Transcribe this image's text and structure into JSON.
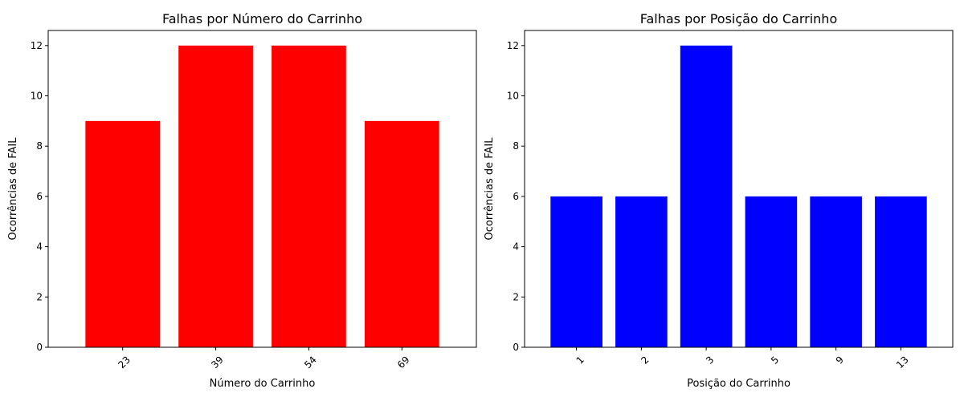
{
  "chart_data": [
    {
      "type": "bar",
      "title": "Falhas por Número do Carrinho",
      "xlabel": "Número do Carrinho",
      "ylabel": "Ocorrências de FAIL",
      "categories": [
        "23",
        "39",
        "54",
        "69"
      ],
      "values": [
        9,
        12,
        12,
        9
      ],
      "ylim": [
        0,
        12.6
      ],
      "yticks": [
        0,
        2,
        4,
        6,
        8,
        10,
        12
      ],
      "xtick_rotation": 45,
      "color": "#ff0000",
      "grid": false
    },
    {
      "type": "bar",
      "title": "Falhas por Posição do Carrinho",
      "xlabel": "Posição do Carrinho",
      "ylabel": "Ocorrências de FAIL",
      "categories": [
        "1",
        "2",
        "3",
        "5",
        "9",
        "13"
      ],
      "values": [
        6,
        6,
        12,
        6,
        6,
        6
      ],
      "ylim": [
        0,
        12.6
      ],
      "yticks": [
        0,
        2,
        4,
        6,
        8,
        10,
        12
      ],
      "xtick_rotation": 45,
      "color": "#0000ff",
      "grid": false
    }
  ]
}
